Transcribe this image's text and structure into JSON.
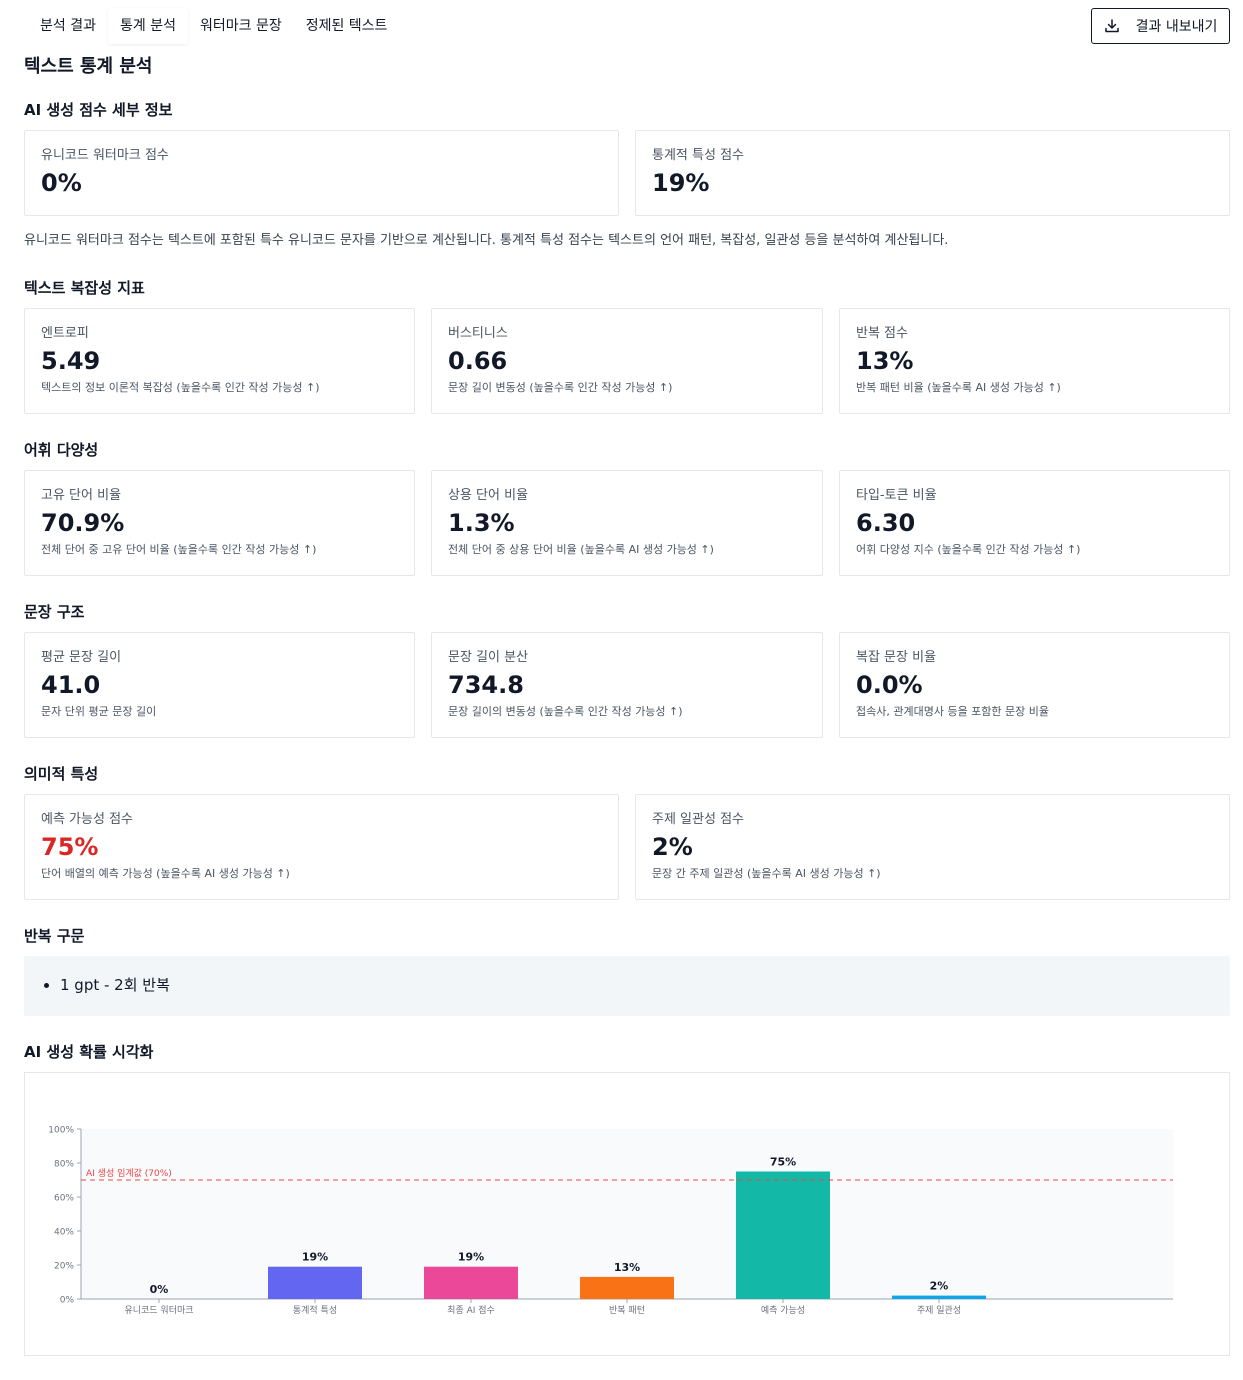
{
  "tabs": [
    "분석 결과",
    "통계 분석",
    "워터마크 문장",
    "정제된 텍스트"
  ],
  "active_tab": 1,
  "export_button": {
    "label": "결과 내보내기",
    "icon": "download-icon"
  },
  "page_title": "텍스트 통계 분석",
  "ai_score": {
    "title": "AI 생성 점수 세부 정보",
    "cards": [
      {
        "label": "유니코드 워터마크 점수",
        "value": "0%"
      },
      {
        "label": "통계적 특성 점수",
        "value": "19%"
      }
    ],
    "note": "유니코드 워터마크 점수는 텍스트에 포함된 특수 유니코드 문자를 기반으로 계산됩니다. 통계적 특성 점수는 텍스트의 언어 패턴, 복잡성, 일관성 등을 분석하여 계산됩니다."
  },
  "complexity": {
    "title": "텍스트 복잡성 지표",
    "cards": [
      {
        "label": "엔트로피",
        "value": "5.49",
        "desc": "텍스트의 정보 이론적 복잡성 (높을수록 인간 작성 가능성 ↑)"
      },
      {
        "label": "버스티니스",
        "value": "0.66",
        "desc": "문장 길이 변동성 (높을수록 인간 작성 가능성 ↑)"
      },
      {
        "label": "반복 점수",
        "value": "13%",
        "desc": "반복 패턴 비율 (높을수록 AI 생성 가능성 ↑)"
      }
    ]
  },
  "vocabulary": {
    "title": "어휘 다양성",
    "cards": [
      {
        "label": "고유 단어 비율",
        "value": "70.9%",
        "desc": "전체 단어 중 고유 단어 비율 (높을수록 인간 작성 가능성 ↑)"
      },
      {
        "label": "상용 단어 비율",
        "value": "1.3%",
        "desc": "전체 단어 중 상용 단어 비율 (높을수록 AI 생성 가능성 ↑)"
      },
      {
        "label": "타입-토큰 비율",
        "value": "6.30",
        "desc": "어휘 다양성 지수 (높을수록 인간 작성 가능성 ↑)"
      }
    ]
  },
  "sentence": {
    "title": "문장 구조",
    "cards": [
      {
        "label": "평균 문장 길이",
        "value": "41.0",
        "desc": "문자 단위 평균 문장 길이"
      },
      {
        "label": "문장 길이 분산",
        "value": "734.8",
        "desc": "문장 길이의 변동성 (높을수록 인간 작성 가능성 ↑)"
      },
      {
        "label": "복잡 문장 비율",
        "value": "0.0%",
        "desc": "접속사, 관계대명사 등을 포함한 문장 비율"
      }
    ]
  },
  "semantic": {
    "title": "의미적 특성",
    "cards": [
      {
        "label": "예측 가능성 점수",
        "value": "75%",
        "desc": "단어 배열의 예측 가능성 (높을수록 AI 생성 가능성 ↑)",
        "highlight": "#dc2626"
      },
      {
        "label": "주제 일관성 점수",
        "value": "2%",
        "desc": "문장 간 주제 일관성 (높을수록 AI 생성 가능성 ↑)"
      }
    ]
  },
  "repeats": {
    "title": "반복 구문",
    "items": [
      "1 gpt - 2회 반복"
    ]
  },
  "chart_section": {
    "title": "AI 생성 확률 시각화"
  },
  "chart_data": {
    "type": "bar",
    "categories": [
      "유니코드 워터마크",
      "통계적 특성",
      "최종 AI 점수",
      "반복 패턴",
      "예측 가능성",
      "주제 일관성"
    ],
    "values": [
      0,
      19,
      19,
      13,
      75,
      2
    ],
    "value_labels": [
      "0%",
      "19%",
      "19%",
      "13%",
      "75%",
      "2%"
    ],
    "colors": [
      "#9ca3af",
      "#6366f1",
      "#ec4899",
      "#f97316",
      "#14b8a6",
      "#0ea5e9"
    ],
    "ylim": [
      0,
      100
    ],
    "yticks": [
      0,
      20,
      40,
      60,
      80,
      100
    ],
    "ytick_labels": [
      "0%",
      "20%",
      "40%",
      "60%",
      "80%",
      "100%"
    ],
    "threshold": {
      "value": 70,
      "label": "AI 생성 임계값 (70%)",
      "color": "#ef4444"
    },
    "grid": false
  }
}
